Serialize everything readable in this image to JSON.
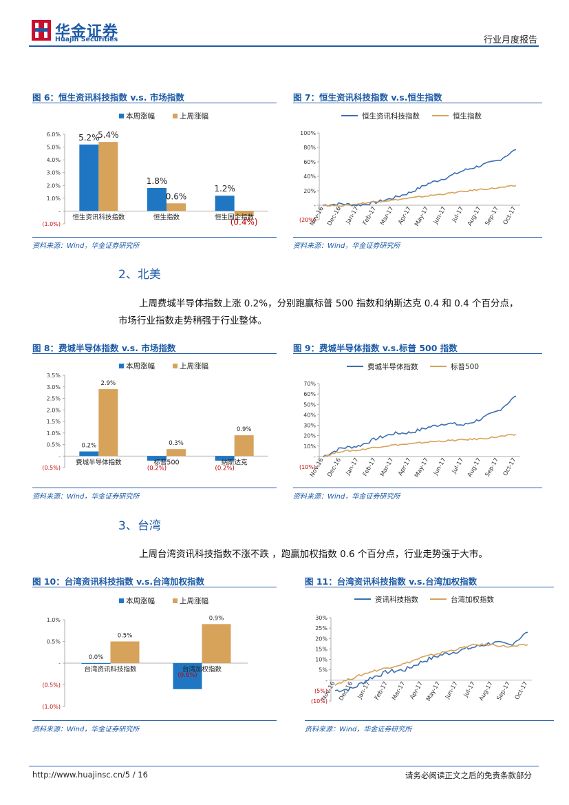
{
  "header": {
    "logo_cn": "华金证券",
    "logo_en": "Huajin Securities",
    "report_type": "行业月度报告"
  },
  "colors": {
    "blue": "#1f77c4",
    "gold": "#d7a25a",
    "brand": "#1c5aa6",
    "red": "#c00000"
  },
  "sections": {
    "na_title": "2、北美",
    "na_p1": "上周费城半导体指数上涨 0.2%，分别跑赢标普 500 指数和纳斯达克 0.4 和 0.4 个百分点，",
    "na_p2": "市场行业指数走势稍强于行业整体。",
    "tw_title": "3、台湾",
    "tw_p1": "上周台湾资讯科技指数不涨不跌 ，跑赢加权指数 0.6 个百分点，行业走势强于大市。"
  },
  "figures": {
    "f6": {
      "title": "图 6：恒生资讯科技指数 v.s. 市场指数",
      "source": "资料来源：Wind，华金证券研究所"
    },
    "f7": {
      "title": "图 7：恒生资讯科技指数 v.s.恒生指数",
      "source": "资料来源：Wind，华金证券研究所"
    },
    "f8": {
      "title": "图 8：费城半导体指数 v.s. 市场指数",
      "source": "资料来源：Wind，华金证券研究所"
    },
    "f9": {
      "title": "图 9：费城半导体指数 v.s.标普 500 指数",
      "source": "资料来源：Wind，华金证券研究所"
    },
    "f10": {
      "title": "图 10：台湾资讯科技指数 v.s.台湾加权指数",
      "source": "资料来源：Wind，华金证券研究所"
    },
    "f11": {
      "title": "图 11：台湾资讯科技指数 v.s.台湾加权指数",
      "source": "资料来源：Wind，华金证券研究所"
    }
  },
  "footer": {
    "url": "http://www.huajinsc.cn/5 / 16",
    "disclaimer": "请务必阅读正文之后的免责条款部分"
  },
  "chart_data": [
    {
      "id": "f6",
      "type": "bar",
      "categories": [
        "恒生资讯科技指数",
        "恒生指数",
        "恒生国企指数"
      ],
      "series": [
        {
          "name": "本周涨幅",
          "values": [
            5.2,
            1.8,
            1.2
          ],
          "color": "#1f77c4"
        },
        {
          "name": "上周涨幅",
          "values": [
            5.4,
            0.6,
            -0.4
          ],
          "color": "#d7a25a"
        }
      ],
      "data_labels": [
        [
          "5.2%",
          "1.8%",
          "1.2%"
        ],
        [
          "5.4%",
          "0.6%",
          "(0.4%)"
        ]
      ],
      "yticks": [
        "(1.0%)",
        "-",
        "1.0%",
        "2.0%",
        "3.0%",
        "4.0%",
        "5.0%",
        "6.0%"
      ],
      "ylim": [
        -1,
        6
      ],
      "legend": "top"
    },
    {
      "id": "f7",
      "type": "line",
      "x": [
        "Nov-16",
        "Dec-16",
        "Jan-17",
        "Feb-17",
        "Mar-17",
        "Apr-17",
        "May-17",
        "Jun-17",
        "Jul-17",
        "Aug-17",
        "Sep-17",
        "Oct-17"
      ],
      "series": [
        {
          "name": "恒生资讯科技指数",
          "values": [
            0,
            2,
            0,
            4,
            10,
            18,
            30,
            38,
            48,
            55,
            62,
            77
          ],
          "color": "#3a6fb0"
        },
        {
          "name": "恒生指数",
          "values": [
            0,
            -1,
            2,
            5,
            7,
            10,
            13,
            16,
            19,
            22,
            24,
            27
          ],
          "color": "#d7a25a"
        }
      ],
      "yticks": [
        "(20%)",
        "-",
        "20%",
        "40%",
        "60%",
        "80%",
        "100%"
      ],
      "ylim": [
        -20,
        100
      ],
      "legend": "top"
    },
    {
      "id": "f8",
      "type": "bar",
      "categories": [
        "费城半导体指数",
        "标普500",
        "纳斯达克"
      ],
      "series": [
        {
          "name": "本周涨幅",
          "values": [
            0.2,
            -0.2,
            -0.2
          ],
          "color": "#1f77c4"
        },
        {
          "name": "上周涨幅",
          "values": [
            2.9,
            0.3,
            0.9
          ],
          "color": "#d7a25a"
        }
      ],
      "data_labels": [
        [
          "0.2%",
          "(0.2%)",
          "(0.2%)"
        ],
        [
          "2.9%",
          "0.3%",
          "0.9%"
        ]
      ],
      "yticks": [
        "(0.5%)",
        "-",
        "0.5%",
        "1.0%",
        "1.5%",
        "2.0%",
        "2.5%",
        "3.0%",
        "3.5%"
      ],
      "ylim": [
        -0.5,
        3.5
      ],
      "legend": "top"
    },
    {
      "id": "f9",
      "type": "line",
      "x": [
        "Nov-16",
        "Dec-16",
        "Jan-17",
        "Feb-17",
        "Mar-17",
        "Apr-17",
        "May-17",
        "Jun-17",
        "Jul-17",
        "Aug-17",
        "Sep-17",
        "Oct-17"
      ],
      "series": [
        {
          "name": "费城半导体指数",
          "values": [
            0,
            8,
            10,
            17,
            22,
            23,
            28,
            32,
            30,
            36,
            44,
            58
          ],
          "color": "#3a6fb0"
        },
        {
          "name": "标普500",
          "values": [
            0,
            5,
            6,
            9,
            11,
            12,
            14,
            15,
            16,
            17,
            19,
            21
          ],
          "color": "#d7a25a"
        }
      ],
      "yticks": [
        "(10%)",
        "-",
        "10%",
        "20%",
        "30%",
        "40%",
        "50%",
        "60%",
        "70%"
      ],
      "ylim": [
        -10,
        70
      ],
      "legend": "top"
    },
    {
      "id": "f10",
      "type": "bar",
      "categories": [
        "台湾资讯科技指数",
        "台湾加权指数"
      ],
      "series": [
        {
          "name": "本周涨幅",
          "values": [
            0.0,
            -0.6
          ],
          "color": "#1f77c4"
        },
        {
          "name": "上周涨幅",
          "values": [
            0.5,
            0.9
          ],
          "color": "#d7a25a"
        }
      ],
      "data_labels": [
        [
          "0.0%",
          "(0.6%)"
        ],
        [
          "0.5%",
          "0.9%"
        ]
      ],
      "yticks": [
        "(1.0%)",
        "(0.5%)",
        "-",
        "0.5%",
        "1.0%"
      ],
      "ylim": [
        -1,
        1
      ],
      "legend": "top"
    },
    {
      "id": "f11",
      "type": "line",
      "x": [
        "Nov-16",
        "Dec-16",
        "Jan-17",
        "Feb-17",
        "Mar-17",
        "Apr-17",
        "May-17",
        "Jun-17",
        "Jul-17",
        "Aug-17",
        "Sep-17",
        "Oct-17"
      ],
      "series": [
        {
          "name": "资讯科技指数",
          "values": [
            -5,
            -4,
            1,
            4,
            5,
            9,
            12,
            14,
            16,
            18,
            17,
            23
          ],
          "color": "#3a6fb0"
        },
        {
          "name": "台湾加权指数",
          "values": [
            -2,
            1,
            4,
            6,
            8,
            11,
            13,
            15,
            17,
            17,
            16,
            17
          ],
          "color": "#d7a25a"
        }
      ],
      "yticks": [
        "(10%)",
        "(5%)",
        "-",
        "5%",
        "10%",
        "15%",
        "20%",
        "25%",
        "30%"
      ],
      "ylim": [
        -10,
        30
      ],
      "legend": "top"
    }
  ]
}
